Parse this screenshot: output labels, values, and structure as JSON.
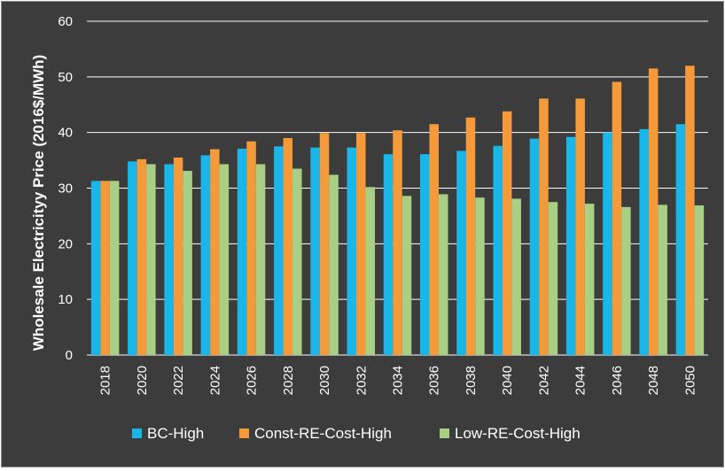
{
  "chart_data": {
    "type": "bar",
    "ylabel": "Wholesale Electricityy Price (2016$/MWh)",
    "xlabel": "",
    "title": "",
    "ylim": [
      0,
      60
    ],
    "yticks": [
      0,
      10,
      20,
      30,
      40,
      50,
      60
    ],
    "grid": "horizontal",
    "legend_position": "bottom",
    "categories": [
      "2018",
      "2020",
      "2022",
      "2024",
      "2026",
      "2028",
      "2030",
      "2032",
      "2034",
      "2036",
      "2038",
      "2040",
      "2042",
      "2044",
      "2046",
      "2048",
      "2050"
    ],
    "series": [
      {
        "name": "BC-High",
        "color": "#19b6ea",
        "values": [
          31.3,
          34.8,
          34.3,
          35.9,
          37.1,
          37.5,
          37.3,
          37.3,
          36.1,
          36.1,
          36.7,
          37.6,
          38.9,
          39.2,
          40.0,
          40.6,
          41.5
        ]
      },
      {
        "name": "Const-RE-Cost-High",
        "color": "#f59a3a",
        "values": [
          31.3,
          35.2,
          35.5,
          37.0,
          38.4,
          39.0,
          39.9,
          39.9,
          40.4,
          41.5,
          42.7,
          43.8,
          46.1,
          46.1,
          49.1,
          51.5,
          52.0
        ]
      },
      {
        "name": "Low-RE-Cost-High",
        "color": "#a9cf85",
        "values": [
          31.3,
          34.3,
          33.1,
          34.3,
          34.3,
          33.5,
          32.4,
          30.2,
          28.6,
          28.9,
          28.3,
          28.1,
          27.5,
          27.2,
          26.6,
          27.0,
          26.9
        ]
      }
    ]
  }
}
